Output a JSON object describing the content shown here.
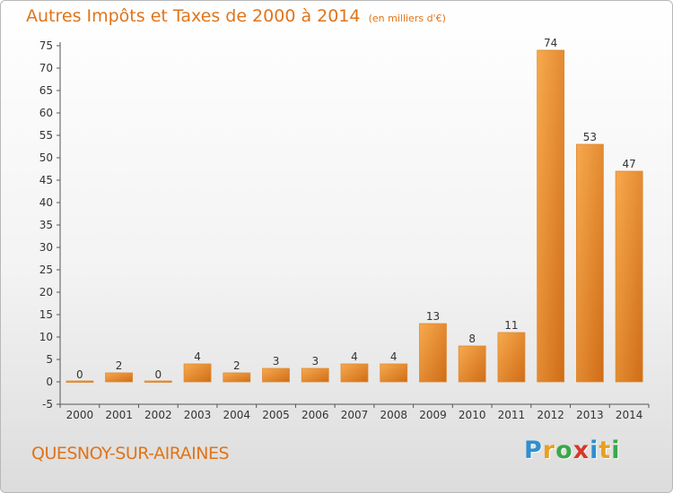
{
  "chart_data": {
    "type": "bar",
    "title": "Autres Impôts et Taxes de 2000 à 2014",
    "unit_note": "(en milliers d'€)",
    "categories": [
      "2000",
      "2001",
      "2002",
      "2003",
      "2004",
      "2005",
      "2006",
      "2007",
      "2008",
      "2009",
      "2010",
      "2011",
      "2012",
      "2013",
      "2014"
    ],
    "values": [
      0,
      2,
      0,
      4,
      2,
      3,
      3,
      4,
      4,
      13,
      8,
      11,
      74,
      53,
      47
    ],
    "data_labels": [
      "0",
      "2",
      "0",
      "4",
      "2",
      "3",
      "3",
      "4",
      "4",
      "13",
      "8",
      "11",
      "74",
      "53",
      "47"
    ],
    "ylim": [
      -5,
      75
    ],
    "yticks": [
      -5,
      0,
      5,
      10,
      15,
      20,
      25,
      30,
      35,
      40,
      45,
      50,
      55,
      60,
      65,
      70,
      75
    ],
    "grid": false,
    "legend": "none",
    "bar_color": "#f0973c"
  },
  "footer": {
    "commune": "QUESNOY-SUR-AIRAINES",
    "brand_letters": [
      {
        "ch": "P",
        "color": "#2f8fd0"
      },
      {
        "ch": "r",
        "color": "#e8a020"
      },
      {
        "ch": "o",
        "color": "#3aa84a"
      },
      {
        "ch": "x",
        "color": "#d43a2a"
      },
      {
        "ch": "i",
        "color": "#2f8fd0"
      },
      {
        "ch": "t",
        "color": "#e8a020"
      },
      {
        "ch": "i",
        "color": "#3aa84a"
      }
    ]
  },
  "colors": {
    "accent": "#e0741a"
  }
}
